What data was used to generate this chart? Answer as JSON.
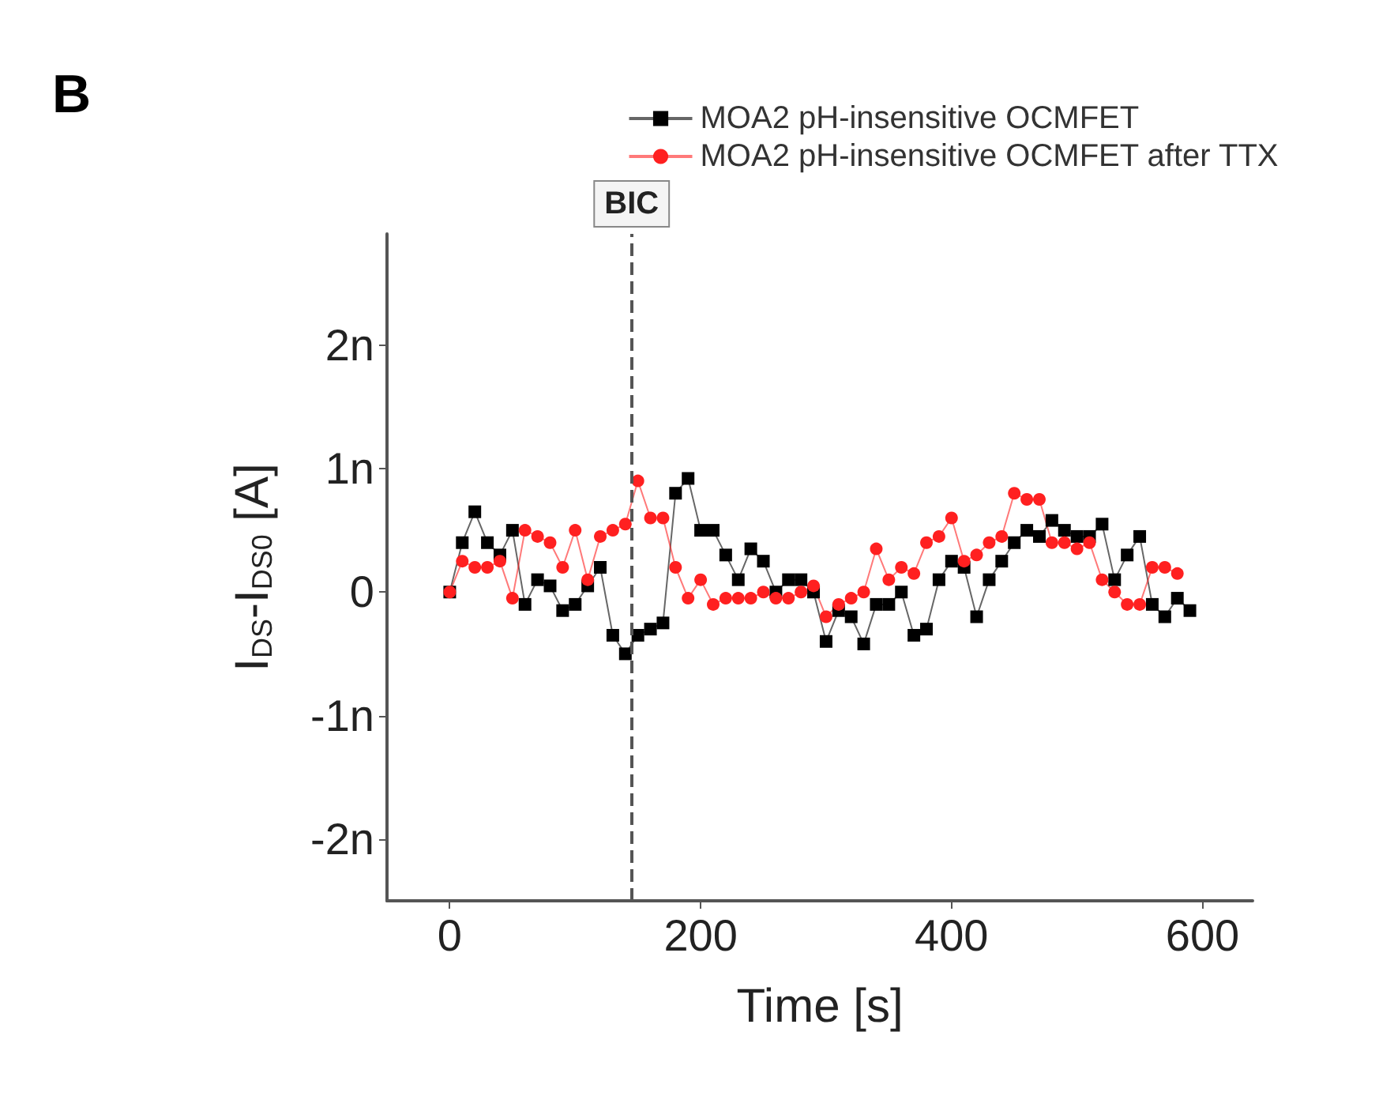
{
  "chart_data": {
    "type": "line",
    "title": "B",
    "xlabel": "Time [s]",
    "ylabel": "I$_{DS}$-I$_{DS0}$ [A]",
    "x": [
      0,
      10,
      20,
      30,
      40,
      50,
      60,
      70,
      80,
      90,
      100,
      110,
      120,
      130,
      140,
      150,
      160,
      170,
      180,
      190,
      200,
      210,
      220,
      230,
      240,
      250,
      260,
      270,
      280,
      290,
      300,
      310,
      320,
      330,
      340,
      350,
      360,
      370,
      380,
      390,
      400,
      410,
      420,
      430,
      440,
      450,
      460,
      470,
      480,
      490,
      500,
      510,
      520,
      530,
      540,
      550,
      560,
      570,
      580,
      590
    ],
    "series": [
      {
        "name": "MOA2 pH-insensitive OCMFET",
        "color": "#000000",
        "marker": "square",
        "values": [
          0,
          0.4,
          0.65,
          0.4,
          0.3,
          0.5,
          -0.1,
          0.1,
          0.05,
          -0.15,
          -0.1,
          0.05,
          0.2,
          -0.35,
          -0.5,
          -0.35,
          -0.3,
          -0.25,
          0.8,
          0.92,
          0.5,
          0.5,
          0.3,
          0.1,
          0.35,
          0.25,
          0,
          0.1,
          0.1,
          0,
          -0.4,
          -0.15,
          -0.2,
          -0.42,
          -0.1,
          -0.1,
          0,
          -0.35,
          -0.3,
          0.1,
          0.25,
          0.2,
          -0.2,
          0.1,
          0.25,
          0.4,
          0.5,
          0.45,
          0.58,
          0.5,
          0.45,
          0.45,
          0.55,
          0.1,
          0.3,
          0.45,
          -0.1,
          -0.2,
          -0.05,
          -0.15
        ]
      },
      {
        "name": "MOA2 pH-insensitive OCMFET after TTX",
        "color": "#ff2020",
        "marker": "circle",
        "values": [
          0,
          0.25,
          0.2,
          0.2,
          0.25,
          -0.05,
          0.5,
          0.45,
          0.4,
          0.2,
          0.5,
          0.1,
          0.45,
          0.5,
          0.55,
          0.9,
          0.6,
          0.6,
          0.2,
          -0.05,
          0.1,
          -0.1,
          -0.05,
          -0.05,
          -0.05,
          0,
          -0.05,
          -0.05,
          0,
          0.05,
          -0.2,
          -0.1,
          -0.05,
          0,
          0.35,
          0.1,
          0.2,
          0.15,
          0.4,
          0.45,
          0.6,
          0.25,
          0.3,
          0.4,
          0.45,
          0.8,
          0.75,
          0.75,
          0.4,
          0.4,
          0.35,
          0.4,
          0.1,
          0,
          -0.1,
          -0.1,
          0.2,
          0.2,
          0.15,
          null
        ]
      }
    ],
    "xlim": [
      -50,
      640
    ],
    "xticks": [
      0,
      200,
      400,
      600
    ],
    "ylim": [
      -2.5,
      2.9
    ],
    "yticks": [
      {
        "value": -2,
        "label": "-2n"
      },
      {
        "value": -1,
        "label": "-1n"
      },
      {
        "value": 0,
        "label": "0"
      },
      {
        "value": 1,
        "label": "1n"
      },
      {
        "value": 2,
        "label": "2n"
      }
    ],
    "ref_lines": [
      {
        "axis": "x",
        "value": 145,
        "label": "BIC",
        "line_style": "dashed",
        "color": "#555555"
      }
    ],
    "grid": false,
    "legend": "top right",
    "line_style": "solid"
  }
}
